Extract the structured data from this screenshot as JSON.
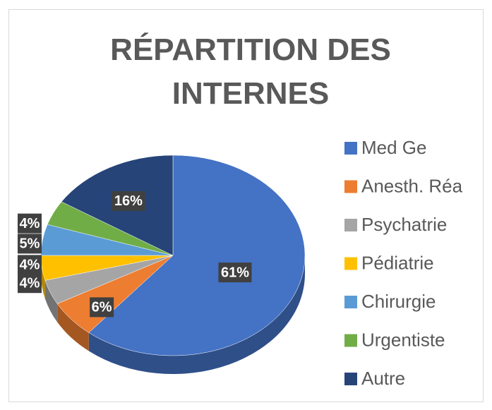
{
  "chart_data": {
    "type": "pie3d",
    "title": "RÉPARTITION DES INTERNES",
    "categories": [
      "Med Ge",
      "Anesth. Réa",
      "Psychatrie",
      "Pédiatrie",
      "Chirurgie",
      "Urgentiste",
      "Autre"
    ],
    "values": [
      61,
      6,
      4,
      4,
      5,
      4,
      16
    ],
    "value_labels": [
      "61%",
      "6%",
      "4%",
      "4%",
      "5%",
      "4%",
      "16%"
    ],
    "colors": [
      "#4472c4",
      "#ed7d31",
      "#a5a5a5",
      "#ffc000",
      "#5b9bd5",
      "#70ad47",
      "#264478"
    ],
    "legend": "right"
  }
}
